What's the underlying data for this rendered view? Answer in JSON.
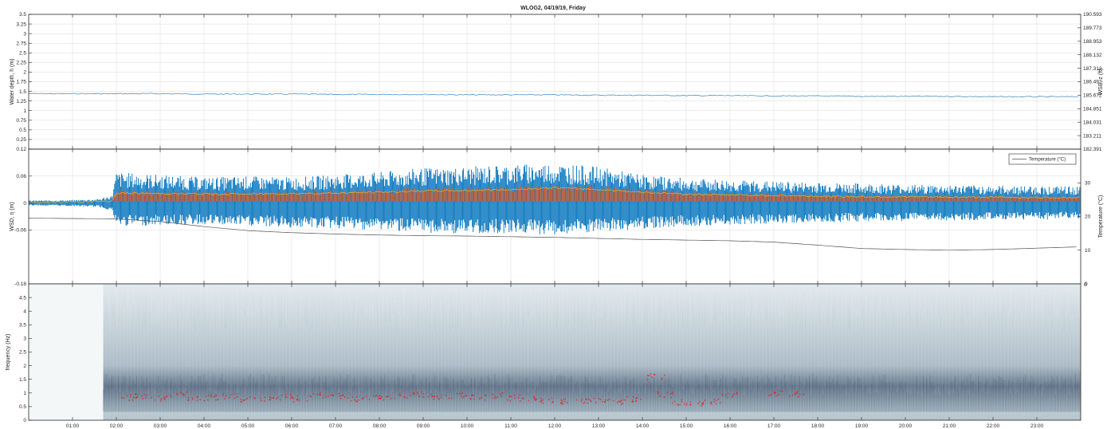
{
  "title": "WLOG2, 04/19/19, Friday",
  "colors": {
    "depth_line": "#4a90c8",
    "wsd_fill": "#0072bd",
    "wsd_peak": "#d95319",
    "wsd_mean": "#edb120",
    "temperature_line": "#505050",
    "spectrogram_low": "#e9f0f2",
    "spectrogram_high": "#3a4f66",
    "peak_marker": "#ff0000",
    "grid": "#d9d9d9",
    "axis": "#262626"
  },
  "x_axis": {
    "ticks": [
      "01:00",
      "02:00",
      "03:00",
      "04:00",
      "05:00",
      "06:00",
      "07:00",
      "08:00",
      "09:00",
      "10:00",
      "11:00",
      "12:00",
      "13:00",
      "14:00",
      "15:00",
      "16:00",
      "17:00",
      "18:00",
      "19:00",
      "20:00",
      "21:00",
      "22:00",
      "23:00"
    ]
  },
  "chart_data": [
    {
      "type": "line",
      "panel": "water-depth",
      "title": "WLOG2, 04/19/19, Friday",
      "xlabel": "",
      "ylabel": "Water depth, h (m)",
      "ylabel_right": "WSE, z (ft)",
      "ylim": [
        0,
        3.5
      ],
      "xlim_hours": [
        0,
        24
      ],
      "yticks": [
        "0",
        "0.25",
        "0.5",
        "0.75",
        "1",
        "1.25",
        "1.5",
        "1.75",
        "2",
        "2.25",
        "2.5",
        "2.75",
        "3",
        "3.25",
        "3.5"
      ],
      "yticks_right": [
        "182.391",
        "183.211",
        "184.031",
        "184.851",
        "185.672",
        "186.492",
        "187.312",
        "188.132",
        "188.953",
        "189.773",
        "190.593"
      ],
      "grid": true,
      "series": [
        {
          "x": [
            0,
            1,
            2,
            3,
            4,
            5,
            6,
            7,
            8,
            9,
            10,
            11,
            12,
            13,
            14,
            15,
            16,
            17,
            18,
            19,
            20,
            21,
            22,
            23,
            24
          ],
          "values": [
            1.44,
            1.44,
            1.44,
            1.44,
            1.43,
            1.43,
            1.43,
            1.42,
            1.42,
            1.42,
            1.41,
            1.41,
            1.41,
            1.4,
            1.4,
            1.39,
            1.39,
            1.38,
            1.38,
            1.37,
            1.37,
            1.37,
            1.36,
            1.36,
            1.36
          ]
        }
      ]
    },
    {
      "type": "area",
      "panel": "wsd",
      "xlabel": "",
      "ylabel": "WSD, η (m)",
      "ylabel_right": "Temperature (°C)",
      "ylim": [
        -0.18,
        0.12
      ],
      "ylim_right": [
        0,
        40
      ],
      "yticks": [
        "-0.18",
        "-0.06",
        "0",
        "0.06",
        "0.12"
      ],
      "yticks_right": [
        "0",
        "10",
        "20",
        "30"
      ],
      "grid": true,
      "legend": {
        "position": "top-right",
        "entries": [
          "Temperature (°C)"
        ]
      },
      "series": [
        {
          "x": [
            0,
            1,
            1.6,
            1.9,
            2,
            3,
            4,
            5,
            6,
            7,
            8,
            9,
            10,
            11,
            12,
            13,
            14,
            15,
            16,
            17,
            18,
            19,
            20,
            21,
            22,
            23,
            24
          ],
          "values": [
            0.005,
            0.006,
            0.008,
            0.015,
            0.06,
            0.055,
            0.05,
            0.052,
            0.05,
            0.055,
            0.06,
            0.068,
            0.07,
            0.075,
            0.078,
            0.07,
            0.055,
            0.048,
            0.045,
            0.042,
            0.04,
            0.038,
            0.036,
            0.035,
            0.034,
            0.033,
            0.032
          ]
        },
        {
          "x": [
            0,
            1,
            1.6,
            1.9,
            2,
            3,
            4,
            5,
            6,
            7,
            8,
            9,
            10,
            11,
            12,
            13,
            14,
            15,
            16,
            17,
            18,
            19,
            20,
            21,
            22,
            23,
            24
          ],
          "values": [
            -0.005,
            -0.006,
            -0.008,
            -0.015,
            -0.045,
            -0.043,
            -0.042,
            -0.045,
            -0.048,
            -0.05,
            -0.052,
            -0.058,
            -0.06,
            -0.058,
            -0.062,
            -0.058,
            -0.05,
            -0.045,
            -0.042,
            -0.04,
            -0.038,
            -0.036,
            -0.035,
            -0.034,
            -0.033,
            -0.032,
            -0.032
          ]
        },
        {
          "x": [
            0,
            1.9,
            2,
            3,
            4,
            5,
            6,
            7,
            8,
            9,
            10,
            11,
            12,
            13,
            14,
            15,
            16,
            17,
            18,
            19,
            20,
            21,
            22,
            23,
            24
          ],
          "values": [
            0.001,
            0.004,
            0.022,
            0.021,
            0.02,
            0.02,
            0.021,
            0.022,
            0.024,
            0.027,
            0.028,
            0.03,
            0.034,
            0.03,
            0.024,
            0.02,
            0.018,
            0.017,
            0.015,
            0.014,
            0.014,
            0.013,
            0.013,
            0.012,
            0.012
          ]
        },
        {
          "x": [
            0,
            2,
            3,
            4,
            5,
            6,
            7,
            8,
            9,
            10,
            11,
            12,
            13,
            14,
            15,
            16,
            17,
            18,
            19,
            20,
            21,
            22,
            23,
            24
          ],
          "values": [
            19.5,
            19.3,
            18.5,
            17.0,
            15.8,
            15.2,
            14.8,
            14.5,
            14.3,
            14.2,
            14.0,
            13.8,
            13.5,
            13.2,
            13.0,
            12.8,
            12.4,
            11.5,
            10.5,
            10.2,
            10.0,
            10.2,
            10.6,
            11.0
          ]
        }
      ]
    },
    {
      "type": "heatmap",
      "panel": "spectrogram",
      "xlabel": "",
      "ylabel": "frequency (Hz)",
      "ylim": [
        0,
        5
      ],
      "yticks": [
        "0",
        "0.5",
        "1",
        "1.5",
        "2",
        "2.5",
        "3",
        "3.5",
        "4",
        "4.5"
      ],
      "colorbar_ticks_right": [
        "0"
      ],
      "peak_frequency": {
        "x": [
          2.3,
          2.6,
          3.0,
          3.4,
          3.8,
          4.2,
          4.6,
          5.0,
          5.4,
          5.8,
          6.2,
          6.6,
          7.0,
          7.4,
          7.8,
          8.2,
          8.6,
          9.0,
          9.4,
          9.8,
          10.2,
          10.6,
          11.0,
          11.4,
          11.8,
          12.2,
          12.6,
          13.0,
          13.4,
          13.8,
          14.3,
          14.5,
          14.8,
          15.2,
          15.6,
          16.0,
          17.0,
          17.5
        ],
        "values": [
          0.75,
          0.8,
          0.72,
          0.85,
          0.7,
          0.75,
          0.8,
          0.7,
          0.72,
          0.76,
          0.7,
          0.82,
          0.78,
          0.7,
          0.74,
          0.76,
          0.8,
          0.85,
          0.78,
          0.82,
          0.75,
          0.8,
          0.72,
          0.7,
          0.65,
          0.6,
          0.58,
          0.62,
          0.6,
          0.65,
          1.5,
          0.85,
          0.55,
          0.5,
          0.6,
          0.85,
          0.9,
          0.88
        ]
      }
    }
  ]
}
